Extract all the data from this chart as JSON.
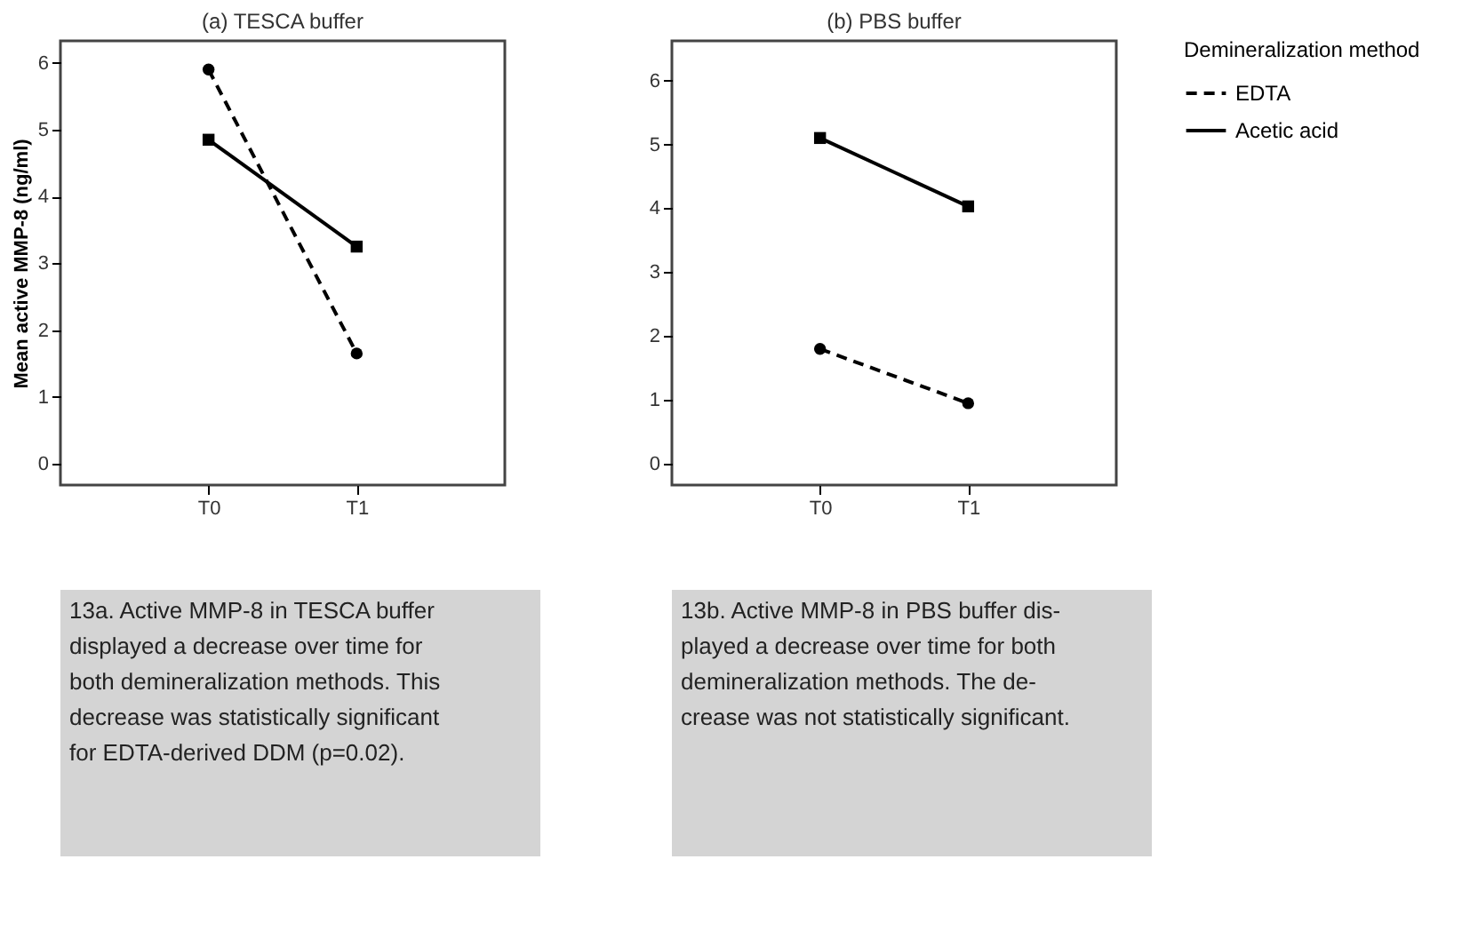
{
  "chart_data": [
    {
      "type": "line",
      "title": "(a) TESCA buffer",
      "ylabel": "Mean active MMP-8 (ng/ml)",
      "categories": [
        "T0",
        "T1"
      ],
      "ylim": [
        -0.32,
        6.33
      ],
      "yticks": [
        0,
        1,
        2,
        3,
        4,
        5,
        6
      ],
      "grid": false,
      "legend": false,
      "series": [
        {
          "color": "#000000",
          "values": [
            5.9,
            1.65
          ],
          "marker": "circle",
          "line_style": "dashed"
        },
        {
          "color": "#000000",
          "values": [
            4.85,
            3.25
          ],
          "marker": "square",
          "line_style": "solid"
        }
      ],
      "annotations": [
        "13a. Active MMP-8 in TESCA buffer\ndisplayed a decrease over time for\nboth demineralization methods. This\ndecrease was statistically significant\nfor EDTA-derived DDM (p=0.02)."
      ]
    },
    {
      "type": "line",
      "title": "(b) PBS buffer",
      "legend_title": "Demineralization method",
      "categories": [
        "T0",
        "T1"
      ],
      "ylim": [
        -0.33,
        6.62
      ],
      "yticks": [
        0,
        1,
        2,
        3,
        4,
        5,
        6
      ],
      "grid": false,
      "legend": "right",
      "series": [
        {
          "name": "EDTA",
          "color": "#000000",
          "values": [
            1.8,
            0.95
          ],
          "marker": "circle",
          "line_style": "dashed"
        },
        {
          "name": "Acetic acid",
          "color": "#000000",
          "values": [
            5.1,
            4.03
          ],
          "marker": "square",
          "line_style": "solid"
        }
      ],
      "annotations": [
        "13b. Active MMP-8 in PBS buffer dis-\nplayed a decrease over time for both\ndemineralization methods. The de-\ncrease was not statistically significant."
      ]
    }
  ]
}
